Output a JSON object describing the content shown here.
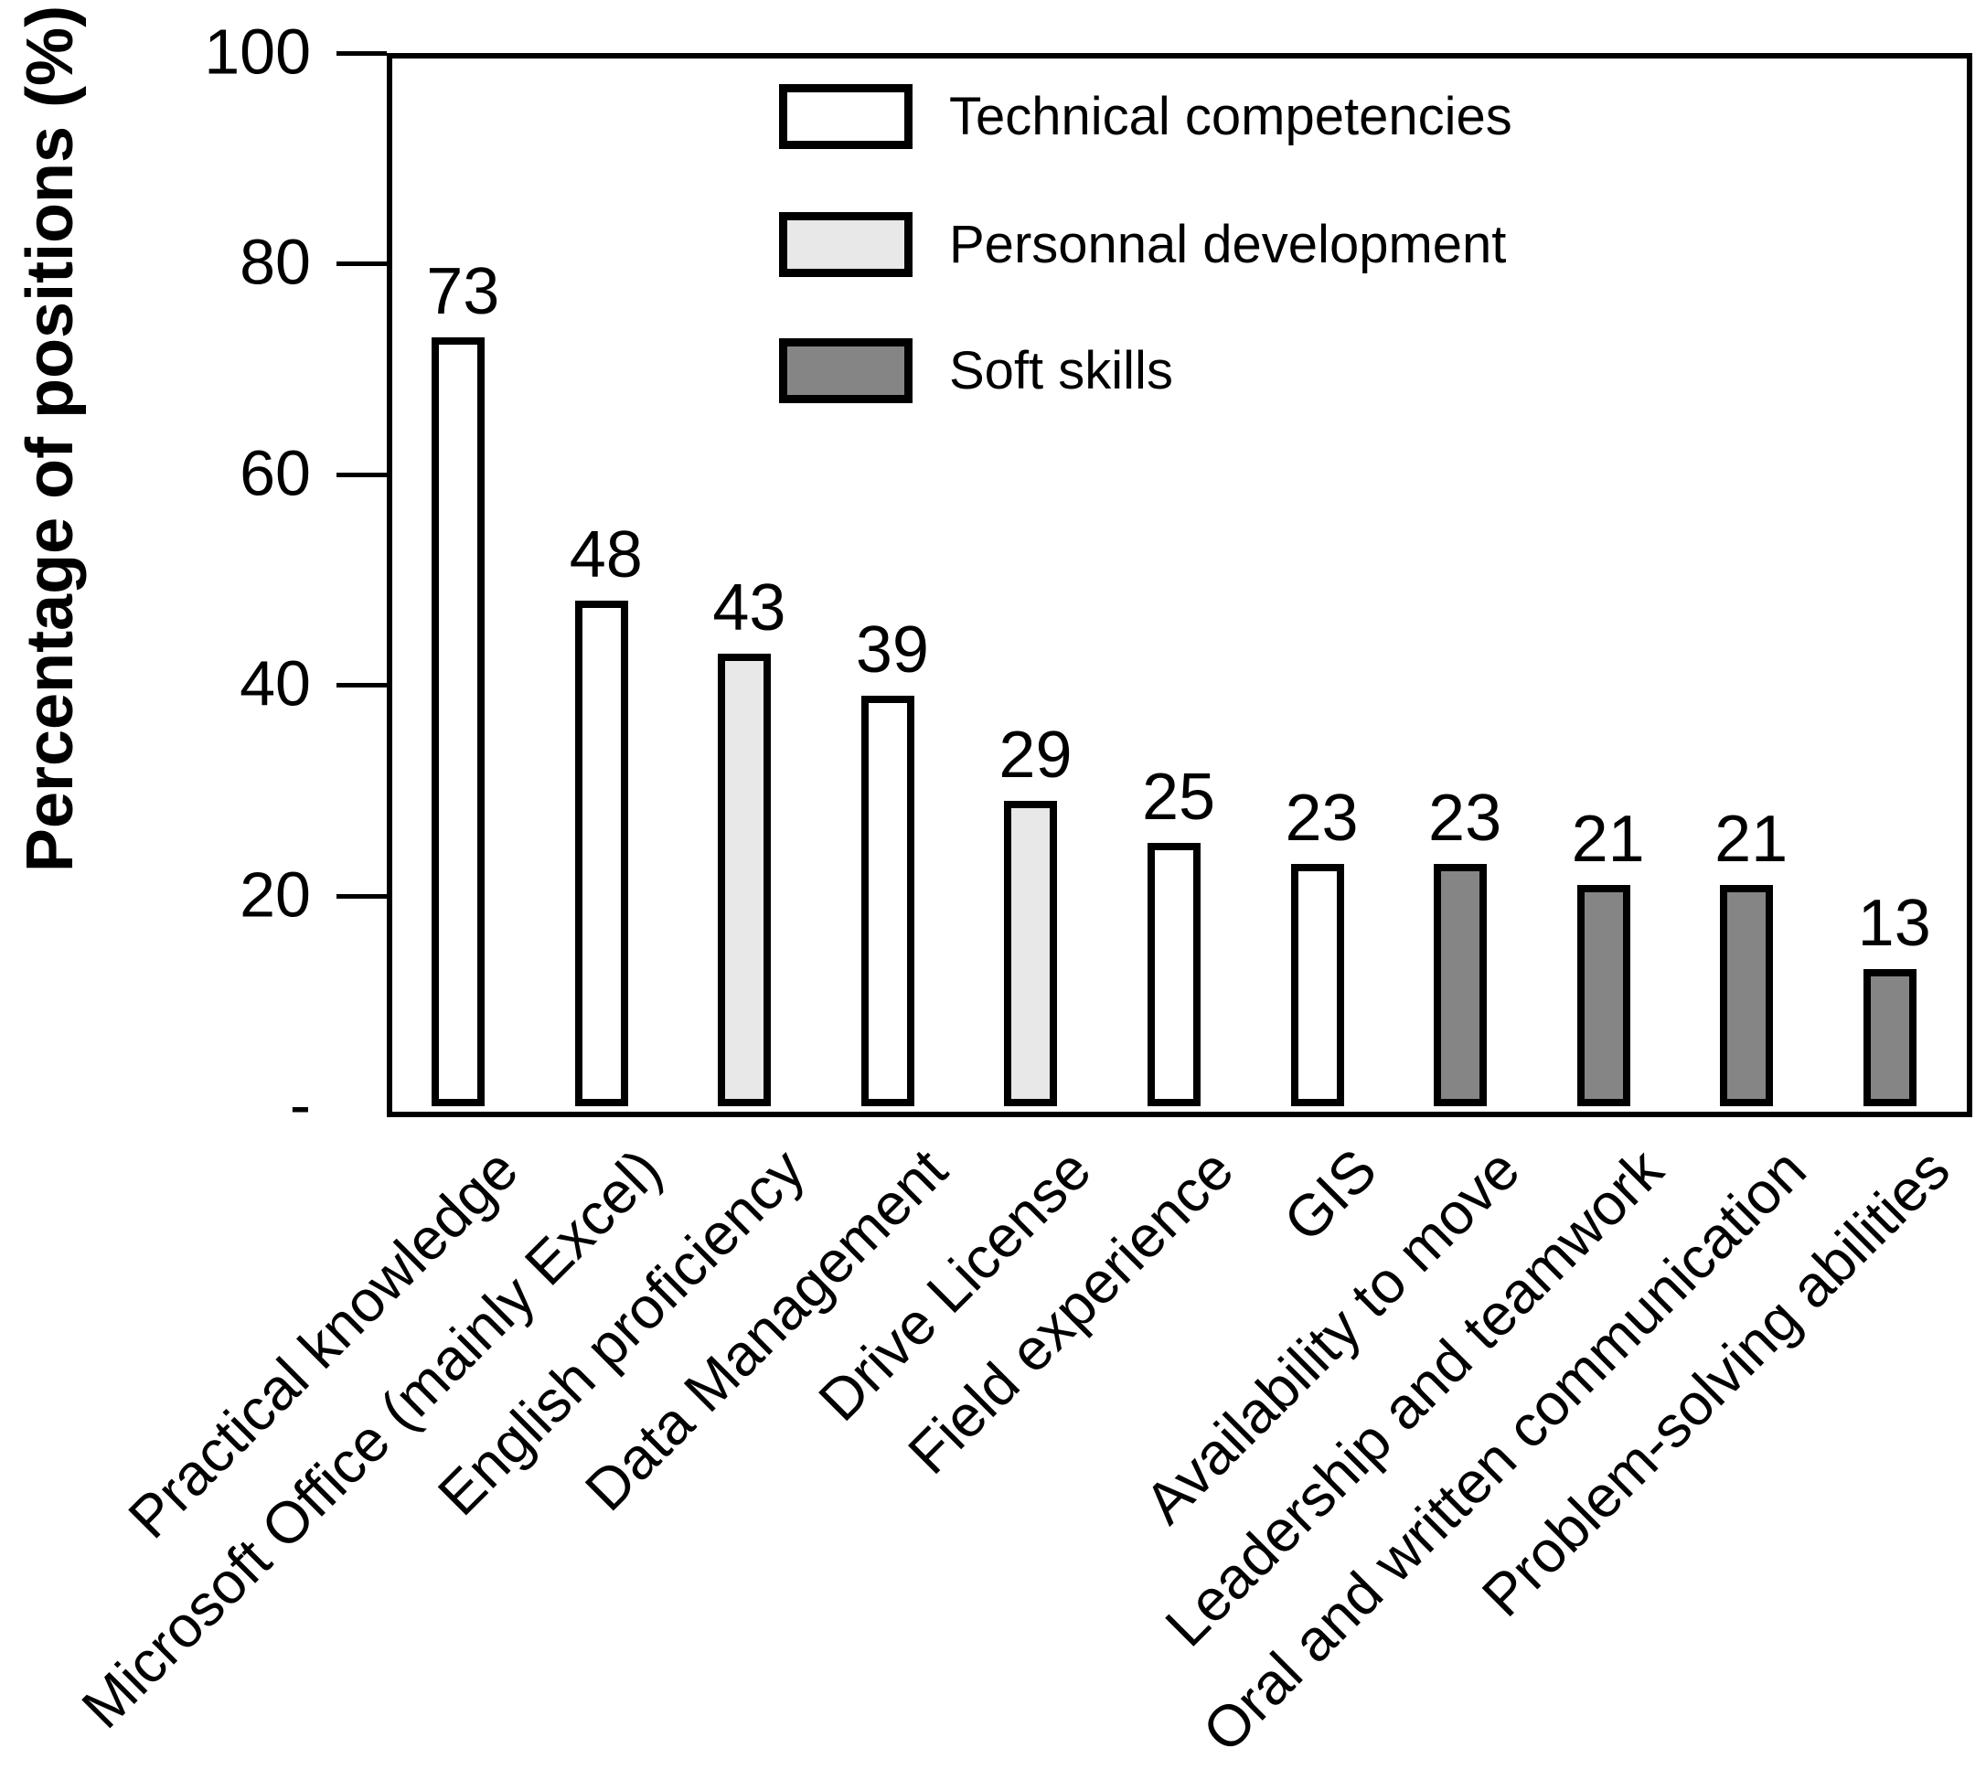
{
  "chart_data": {
    "type": "bar",
    "title": "",
    "xlabel": "",
    "ylabel": "Percentage of positions (%)",
    "ylim": [
      0,
      100
    ],
    "grid": false,
    "categories": [
      "Practical knowledge",
      "Microsoft Office (mainly Excel)",
      "English proficiency",
      "Data Management",
      "Drive License",
      "Field experience",
      "GIS",
      "Availability to move",
      "Leadership and teamwork",
      "Oral and written communication",
      "Problem-solving abilities"
    ],
    "values": [
      73,
      48,
      43,
      39,
      29,
      25,
      23,
      23,
      21,
      21,
      13
    ],
    "value_labels": [
      "73",
      "48",
      "43",
      "39",
      "29",
      "25",
      "23",
      "23",
      "21",
      "21",
      "13"
    ],
    "groups": [
      "technical",
      "technical",
      "personal",
      "technical",
      "personal",
      "technical",
      "technical",
      "soft",
      "soft",
      "soft",
      "soft"
    ],
    "group_colors": {
      "technical": "#ffffff",
      "personal": "#e8e8e8",
      "soft": "#858585"
    },
    "bar_border_color": "#000000",
    "yticks": [
      {
        "value": 100,
        "label": "100"
      },
      {
        "value": 80,
        "label": "80"
      },
      {
        "value": 60,
        "label": "60"
      },
      {
        "value": 40,
        "label": "40"
      },
      {
        "value": 20,
        "label": "20"
      },
      {
        "value": 0,
        "label": "-"
      }
    ],
    "legend_position": "top-inside",
    "legend": [
      {
        "label": "Technical competencies",
        "color": "#ffffff",
        "group": "technical"
      },
      {
        "label": "Personnal development",
        "color": "#e8e8e8",
        "group": "personal"
      },
      {
        "label": "Soft skills",
        "color": "#858585",
        "group": "soft"
      }
    ]
  }
}
